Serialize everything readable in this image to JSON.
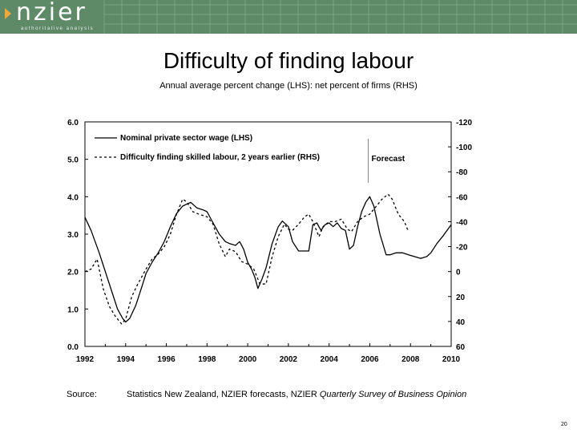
{
  "header": {
    "logo_text": "nzier",
    "logo_tagline": "authoritative analysis",
    "brand_color": "#5f8a68",
    "accent_color": "#f0a83a"
  },
  "chart_data": {
    "type": "line",
    "title": "Difficulty of finding labour",
    "subtitle": "Annual average percent change (LHS): net percent of firms (RHS)",
    "x_ticks": [
      "1992",
      "1994",
      "1996",
      "1998",
      "2000",
      "2002",
      "2004",
      "2006",
      "2008",
      "2010"
    ],
    "xlim": [
      1992,
      2010
    ],
    "y_left": {
      "lim": [
        0,
        6
      ],
      "ticks": [
        "0.0",
        "1.0",
        "2.0",
        "3.0",
        "4.0",
        "5.0",
        "6.0"
      ]
    },
    "y_right": {
      "lim": [
        60,
        -120
      ],
      "inverted": true,
      "ticks": [
        "60",
        "40",
        "20",
        "0",
        "-20",
        "-40",
        "-60",
        "-80",
        "-100",
        "-120"
      ]
    },
    "legend": {
      "position": "top-left",
      "entries": [
        "Nominal private sector wage (LHS)",
        "Difficulty finding skilled labour, 2 years earlier (RHS)"
      ]
    },
    "annotation": {
      "text": "Forecast",
      "x": 2006
    },
    "grid": false,
    "series": [
      {
        "name": "Nominal private sector wage (LHS)",
        "axis": "left",
        "style": "solid",
        "points": [
          [
            1992.0,
            3.45
          ],
          [
            1992.3,
            3.1
          ],
          [
            1992.7,
            2.5
          ],
          [
            1993.0,
            2.0
          ],
          [
            1993.3,
            1.5
          ],
          [
            1993.6,
            1.0
          ],
          [
            1993.85,
            0.75
          ],
          [
            1994.0,
            0.65
          ],
          [
            1994.2,
            0.75
          ],
          [
            1994.5,
            1.1
          ],
          [
            1994.8,
            1.6
          ],
          [
            1995.0,
            1.95
          ],
          [
            1995.3,
            2.25
          ],
          [
            1995.6,
            2.5
          ],
          [
            1995.9,
            2.8
          ],
          [
            1996.2,
            3.2
          ],
          [
            1996.5,
            3.55
          ],
          [
            1996.8,
            3.75
          ],
          [
            1997.0,
            3.8
          ],
          [
            1997.2,
            3.85
          ],
          [
            1997.5,
            3.7
          ],
          [
            1997.8,
            3.65
          ],
          [
            1998.0,
            3.6
          ],
          [
            1998.3,
            3.3
          ],
          [
            1998.6,
            3.0
          ],
          [
            1998.9,
            2.8
          ],
          [
            1999.1,
            2.75
          ],
          [
            1999.4,
            2.7
          ],
          [
            1999.6,
            2.8
          ],
          [
            1999.8,
            2.6
          ],
          [
            2000.0,
            2.25
          ],
          [
            2000.2,
            2.05
          ],
          [
            2000.35,
            1.85
          ],
          [
            2000.5,
            1.55
          ],
          [
            2000.7,
            1.8
          ],
          [
            2000.9,
            2.1
          ],
          [
            2001.2,
            2.75
          ],
          [
            2001.5,
            3.2
          ],
          [
            2001.7,
            3.35
          ],
          [
            2002.0,
            3.2
          ],
          [
            2002.2,
            2.8
          ],
          [
            2002.5,
            2.55
          ],
          [
            2002.8,
            2.55
          ],
          [
            2003.0,
            2.55
          ],
          [
            2003.2,
            3.25
          ],
          [
            2003.4,
            3.3
          ],
          [
            2003.6,
            3.1
          ],
          [
            2003.8,
            3.25
          ],
          [
            2004.0,
            3.3
          ],
          [
            2004.2,
            3.2
          ],
          [
            2004.4,
            3.3
          ],
          [
            2004.6,
            3.15
          ],
          [
            2004.8,
            3.1
          ],
          [
            2005.0,
            2.6
          ],
          [
            2005.2,
            2.7
          ],
          [
            2005.4,
            3.2
          ],
          [
            2005.6,
            3.6
          ],
          [
            2005.8,
            3.85
          ],
          [
            2006.0,
            4.0
          ],
          [
            2006.2,
            3.75
          ],
          [
            2006.5,
            3.0
          ],
          [
            2006.8,
            2.45
          ],
          [
            2007.0,
            2.45
          ],
          [
            2007.3,
            2.5
          ],
          [
            2007.6,
            2.5
          ],
          [
            2007.9,
            2.45
          ],
          [
            2008.2,
            2.4
          ],
          [
            2008.5,
            2.35
          ],
          [
            2008.8,
            2.4
          ],
          [
            2009.0,
            2.5
          ],
          [
            2009.3,
            2.75
          ],
          [
            2009.6,
            2.95
          ],
          [
            2009.8,
            3.1
          ],
          [
            2010.0,
            3.25
          ]
        ]
      },
      {
        "name": "Difficulty finding skilled labour, 2 years earlier (RHS)",
        "axis": "right",
        "style": "dashed",
        "points": [
          [
            1992.0,
            0
          ],
          [
            1992.3,
            -2
          ],
          [
            1992.6,
            -10
          ],
          [
            1992.9,
            14
          ],
          [
            1993.2,
            28
          ],
          [
            1993.5,
            36
          ],
          [
            1993.8,
            42
          ],
          [
            1994.0,
            38
          ],
          [
            1994.3,
            20
          ],
          [
            1994.6,
            10
          ],
          [
            1995.0,
            -2
          ],
          [
            1995.3,
            -10
          ],
          [
            1995.6,
            -14
          ],
          [
            1995.9,
            -20
          ],
          [
            1996.2,
            -30
          ],
          [
            1996.5,
            -46
          ],
          [
            1996.8,
            -58
          ],
          [
            1997.0,
            -56
          ],
          [
            1997.3,
            -48
          ],
          [
            1997.6,
            -46
          ],
          [
            1998.0,
            -44
          ],
          [
            1998.3,
            -38
          ],
          [
            1998.6,
            -22
          ],
          [
            1998.9,
            -12
          ],
          [
            1999.1,
            -18
          ],
          [
            1999.4,
            -16
          ],
          [
            1999.7,
            -8
          ],
          [
            2000.0,
            -6
          ],
          [
            2000.3,
            -2
          ],
          [
            2000.6,
            10
          ],
          [
            2000.9,
            10
          ],
          [
            2001.2,
            -12
          ],
          [
            2001.5,
            -28
          ],
          [
            2001.8,
            -38
          ],
          [
            2002.0,
            -34
          ],
          [
            2002.2,
            -33
          ],
          [
            2002.5,
            -38
          ],
          [
            2002.8,
            -44
          ],
          [
            2003.0,
            -46
          ],
          [
            2003.2,
            -40
          ],
          [
            2003.5,
            -28
          ],
          [
            2003.7,
            -36
          ],
          [
            2004.0,
            -40
          ],
          [
            2004.3,
            -40
          ],
          [
            2004.6,
            -42
          ],
          [
            2004.9,
            -34
          ],
          [
            2005.1,
            -32
          ],
          [
            2005.4,
            -40
          ],
          [
            2005.7,
            -44
          ],
          [
            2006.0,
            -46
          ],
          [
            2006.3,
            -52
          ],
          [
            2006.6,
            -58
          ],
          [
            2006.9,
            -62
          ],
          [
            2007.1,
            -58
          ],
          [
            2007.4,
            -46
          ],
          [
            2007.7,
            -40
          ],
          [
            2007.9,
            -32
          ]
        ]
      }
    ]
  },
  "footer": {
    "source_label": "Source:",
    "source_text": "Statistics New Zealand, NZIER forecasts, NZIER ",
    "source_italic": "Quarterly Survey of Business Opinion",
    "page_number": "20"
  }
}
